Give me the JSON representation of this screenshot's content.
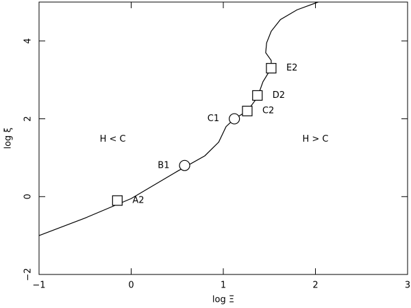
{
  "chart_data": {
    "type": "line",
    "x_label": "log Ξ",
    "y_label": "log ξ",
    "x": [
      -1,
      -0.5,
      0,
      0.5,
      0.8,
      0.95,
      1.03,
      1.12,
      1.26,
      1.37,
      1.43,
      1.52,
      1.52,
      1.46,
      1.47,
      1.52,
      1.62,
      1.8,
      2.03
    ],
    "series": [
      {
        "color": "#000000",
        "values": [
          -1,
          -0.55,
          -0.05,
          0.65,
          1.05,
          1.4,
          1.8,
          2.0,
          2.2,
          2.55,
          2.95,
          3.3,
          3.5,
          3.7,
          3.95,
          4.25,
          4.55,
          4.8,
          5.0
        ]
      }
    ],
    "points": {
      "x": [
        -0.15,
        0.58,
        1.12,
        1.26,
        1.37,
        1.52
      ],
      "y": [
        -0.1,
        0.8,
        2.0,
        2.2,
        2.6,
        3.3
      ],
      "labels": [
        "A2",
        "B1",
        "C1",
        "C2",
        "D2",
        "E2"
      ],
      "shapes": [
        "square",
        "circle",
        "circle",
        "square",
        "square",
        "square"
      ]
    },
    "annotations": [
      {
        "text": "H < C",
        "x": -0.2,
        "y": 1.47
      },
      {
        "text": "H > C",
        "x": 2.0,
        "y": 1.47
      }
    ],
    "xlim": [
      -1,
      3
    ],
    "ylim": [
      -2,
      5
    ],
    "xticks": [
      {
        "value": -1,
        "label": "−1"
      },
      0,
      1,
      2,
      3
    ],
    "yticks": [
      {
        "value": -2,
        "label": "−2"
      },
      0,
      2,
      4
    ]
  }
}
